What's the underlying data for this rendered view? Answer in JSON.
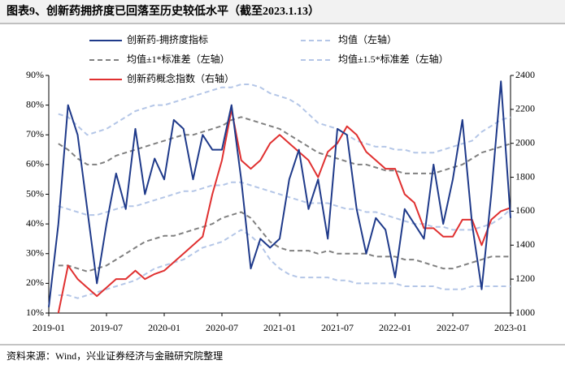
{
  "chart_data": {
    "type": "line",
    "title": "图表9、创新药拥挤度已回落至历史较低水平（截至2023.1.13）",
    "source": "资料来源：Wind，兴业证券经济与金融研究院整理",
    "categories": [
      "2019-01",
      null,
      null,
      null,
      null,
      null,
      "2019-07",
      null,
      null,
      null,
      null,
      null,
      "2020-01",
      null,
      null,
      null,
      null,
      null,
      "2020-07",
      null,
      null,
      null,
      null,
      null,
      "2021-01",
      null,
      null,
      null,
      null,
      null,
      "2021-07",
      null,
      null,
      null,
      null,
      null,
      "2022-01",
      null,
      null,
      null,
      null,
      null,
      "2022-07",
      null,
      null,
      null,
      null,
      null,
      "2023-01"
    ],
    "ylim": [
      10,
      90
    ],
    "yticks": [
      {
        "value": 10,
        "label": "10%"
      },
      {
        "value": 20,
        "label": "20%"
      },
      {
        "value": 30,
        "label": "30%"
      },
      {
        "value": 40,
        "label": "40%"
      },
      {
        "value": 50,
        "label": "50%"
      },
      {
        "value": 60,
        "label": "60%"
      },
      {
        "value": 70,
        "label": "70%"
      },
      {
        "value": 80,
        "label": "80%"
      },
      {
        "value": 90,
        "label": "90%"
      }
    ],
    "y2lim": [
      1000,
      2400
    ],
    "y2ticks": [
      1000,
      1200,
      1400,
      1600,
      1800,
      2000,
      2200,
      2400
    ],
    "series": [
      {
        "name": "创新药-拥挤度指标",
        "color": "#1f3a8a",
        "values": [
          12,
          40,
          80,
          70,
          45,
          20,
          40,
          57,
          45,
          72,
          50,
          62,
          55,
          75,
          72,
          55,
          70,
          65,
          65,
          80,
          55,
          25,
          35,
          32,
          35,
          55,
          65,
          45,
          55,
          35,
          72,
          70,
          45,
          30,
          42,
          38,
          22,
          45,
          40,
          35,
          60,
          40,
          55,
          75,
          40,
          18,
          50,
          88,
          42
        ]
      },
      {
        "name": "均值（左轴）",
        "color": "#b4c6e7",
        "dash": true,
        "values": [
          null,
          46,
          45,
          44,
          43,
          43,
          44,
          45,
          46,
          46,
          47,
          48,
          49,
          50,
          51,
          51,
          52,
          53,
          53,
          54,
          54,
          53,
          52,
          51,
          50,
          49,
          48,
          47,
          47,
          47,
          46,
          45,
          45,
          44,
          44,
          43,
          42,
          41,
          40,
          40,
          39,
          39,
          38,
          38,
          38,
          39,
          40,
          42,
          45
        ]
      },
      {
        "name": "均值±1*标准差（左轴）",
        "color": "#808080",
        "dash": true,
        "values": [
          null,
          67,
          65,
          62,
          60,
          60,
          61,
          63,
          64,
          65,
          66,
          67,
          68,
          69,
          70,
          70,
          71,
          72,
          73,
          75,
          76,
          75,
          74,
          73,
          72,
          70,
          68,
          66,
          64,
          63,
          62,
          61,
          60,
          60,
          59,
          58,
          58,
          57,
          57,
          57,
          57,
          58,
          59,
          60,
          62,
          64,
          65,
          66,
          67
        ],
        "lower": [
          null,
          26,
          26,
          25,
          24,
          25,
          26,
          28,
          30,
          32,
          34,
          35,
          36,
          36,
          37,
          38,
          39,
          40,
          42,
          43,
          44,
          42,
          38,
          34,
          32,
          31,
          31,
          31,
          30,
          31,
          30,
          30,
          30,
          30,
          29,
          29,
          29,
          28,
          28,
          27,
          26,
          25,
          25,
          26,
          27,
          28,
          29,
          29,
          29
        ]
      },
      {
        "name": "均值±1.5*标准差（左轴）",
        "color": "#b4c6e7",
        "dash": true,
        "values": [
          null,
          77,
          76,
          73,
          70,
          71,
          72,
          74,
          76,
          78,
          79,
          80,
          80,
          81,
          82,
          83,
          84,
          85,
          86,
          86,
          87,
          87,
          86,
          84,
          83,
          82,
          80,
          77,
          74,
          73,
          72,
          70,
          68,
          67,
          66,
          66,
          65,
          65,
          64,
          64,
          64,
          65,
          66,
          67,
          68,
          71,
          73,
          75,
          76
        ],
        "lower": [
          null,
          16,
          16,
          15,
          16,
          17,
          18,
          19,
          20,
          21,
          23,
          25,
          26,
          27,
          28,
          30,
          32,
          33,
          34,
          36,
          38,
          36,
          33,
          28,
          25,
          23,
          22,
          22,
          22,
          22,
          21,
          21,
          20,
          20,
          20,
          20,
          20,
          19,
          19,
          19,
          19,
          18,
          18,
          18,
          19,
          19,
          19,
          19,
          19
        ]
      },
      {
        "name": "创新药概念指数（右轴）",
        "color": "#e03030",
        "axis": "y2",
        "values": [
          null,
          1000,
          1280,
          1200,
          1150,
          1100,
          1150,
          1200,
          1200,
          1250,
          1200,
          1230,
          1250,
          1300,
          1350,
          1400,
          1450,
          1700,
          1900,
          2200,
          1900,
          1850,
          1900,
          2000,
          2050,
          2000,
          1950,
          1900,
          1800,
          1950,
          2000,
          2100,
          2050,
          1950,
          1900,
          1850,
          1850,
          1700,
          1650,
          1500,
          1500,
          1450,
          1450,
          1550,
          1550,
          1400,
          1550,
          1600,
          1620
        ]
      }
    ]
  }
}
